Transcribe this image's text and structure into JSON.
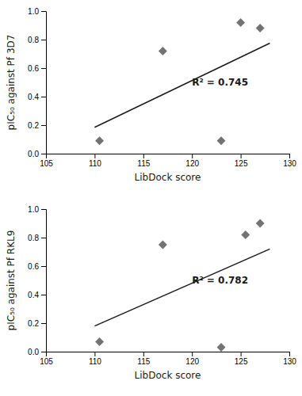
{
  "chart_data": [
    {
      "type": "scatter",
      "xlabel": "LibDock score",
      "ylabel": "pIC₅₀ against Pf 3D7",
      "annotations": [
        "R² = 0.745"
      ],
      "series": [
        {
          "type": "scatter",
          "marker": "diamond",
          "color": "#737373",
          "x": [
            110.5,
            117,
            123,
            125,
            127
          ],
          "values": [
            0.09,
            0.72,
            0.09,
            0.92,
            0.88
          ]
        },
        {
          "type": "line",
          "color": "#1a1a1a",
          "x": [
            110,
            128
          ],
          "values": [
            0.185,
            0.775
          ]
        }
      ],
      "xlim": [
        105,
        130
      ],
      "ylim": [
        0,
        1
      ],
      "xticks": [
        105,
        110,
        115,
        120,
        125,
        130
      ],
      "yticks": [
        {
          "value": 0,
          "label": "0.0"
        },
        0.2,
        0.4,
        0.6,
        0.8,
        {
          "value": 1,
          "label": "1.0"
        }
      ]
    },
    {
      "type": "scatter",
      "xlabel": "LibDock score",
      "ylabel": "pIC₅₀ against Pf RKL9",
      "annotations": [
        "R² = 0.782"
      ],
      "series": [
        {
          "type": "scatter",
          "marker": "diamond",
          "color": "#737373",
          "x": [
            110.5,
            117,
            123,
            125.5,
            127
          ],
          "values": [
            0.07,
            0.75,
            0.03,
            0.82,
            0.9
          ]
        },
        {
          "type": "line",
          "color": "#1a1a1a",
          "x": [
            110,
            128
          ],
          "values": [
            0.18,
            0.72
          ]
        }
      ],
      "xlim": [
        105,
        130
      ],
      "ylim": [
        0,
        1
      ],
      "xticks": [
        105,
        110,
        115,
        120,
        125,
        130
      ],
      "yticks": [
        {
          "value": 0,
          "label": "0.0"
        },
        0.2,
        0.4,
        0.6,
        0.8,
        {
          "value": 1,
          "label": "1.0"
        }
      ]
    }
  ]
}
